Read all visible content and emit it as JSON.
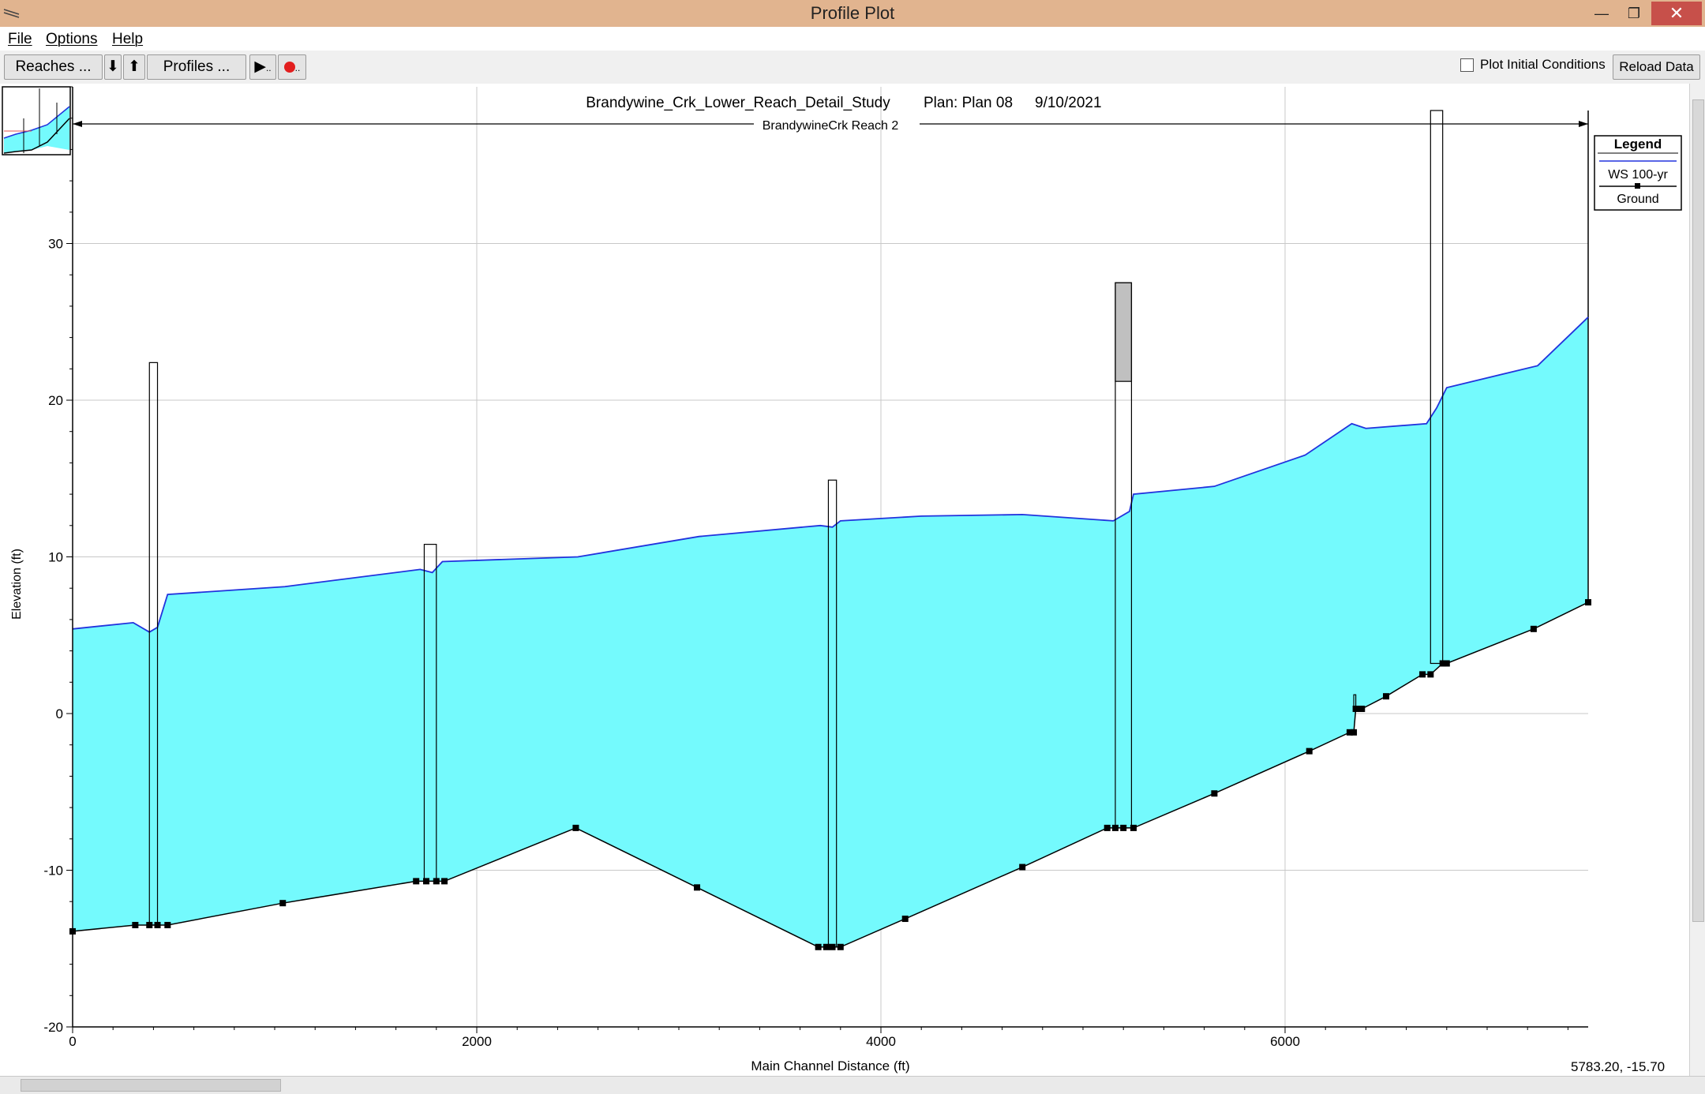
{
  "window": {
    "title": "Profile Plot",
    "minimize_glyph": "—",
    "restore_glyph": "❐",
    "close_glyph": "✕"
  },
  "menu": {
    "file": "File",
    "options": "Options",
    "help": "Help"
  },
  "toolbar": {
    "reaches_label": "Reaches ...",
    "down_arrow": "⬇",
    "up_arrow": "⬆",
    "profiles_label": "Profiles ...",
    "play_glyph": "▶",
    "play_suffix": "..",
    "record_suffix": "..",
    "plot_initial_label": "Plot Initial Conditions",
    "plot_initial_checked": false,
    "reload_label": "Reload Data"
  },
  "status": {
    "coordinate_readout": "5783.20, -15.70"
  },
  "colors": {
    "water": "#74fafd",
    "ws_line": "#2233dd",
    "ground": "#000000",
    "bridge_fill": "#c0c0c0"
  },
  "chart_data": {
    "type": "area",
    "title": "Brandywine_Crk_Lower_Reach_Detail_Study",
    "plan": "Plan: Plan 08",
    "date": "9/10/2021",
    "reach_label": "BrandywineCrk Reach 2",
    "xlabel": "Main Channel Distance (ft)",
    "ylabel": "Elevation (ft)",
    "xlim": [
      0,
      7500
    ],
    "ylim": [
      -20,
      40
    ],
    "xticks": [
      0,
      2000,
      4000,
      6000
    ],
    "yticks": [
      -20,
      -10,
      0,
      10,
      20,
      30
    ],
    "grid": true,
    "legend": {
      "title": "Legend",
      "entries": [
        "WS  100-yr",
        "Ground"
      ],
      "position": "top-right"
    },
    "series": [
      {
        "name": "WS  100-yr",
        "x": [
          0,
          300,
          380,
          420,
          470,
          1050,
          1720,
          1780,
          1830,
          2500,
          3100,
          3700,
          3760,
          3800,
          4200,
          4700,
          5150,
          5230,
          5250,
          5650,
          6100,
          6330,
          6400,
          6700,
          6750,
          6800,
          7250,
          7500
        ],
        "y": [
          5.4,
          5.8,
          5.2,
          5.5,
          7.6,
          8.1,
          9.2,
          9.0,
          9.7,
          10.0,
          11.3,
          12.0,
          11.9,
          12.3,
          12.6,
          12.7,
          12.3,
          12.9,
          14.0,
          14.5,
          16.5,
          18.5,
          18.2,
          18.5,
          19.5,
          20.8,
          22.2,
          25.3
        ]
      },
      {
        "name": "Ground",
        "x": [
          0,
          310,
          380,
          420,
          470,
          1040,
          1700,
          1750,
          1800,
          1840,
          2490,
          3090,
          3690,
          3730,
          3760,
          3800,
          4120,
          4700,
          5120,
          5160,
          5200,
          5250,
          5650,
          6120,
          6320,
          6340,
          6350,
          6380,
          6500,
          6680,
          6720,
          6780,
          6800,
          7230,
          7500
        ],
        "y": [
          -13.9,
          -13.5,
          -13.5,
          -13.5,
          -13.5,
          -12.1,
          -10.7,
          -10.7,
          -10.7,
          -10.7,
          -7.3,
          -11.1,
          -14.9,
          -14.9,
          -14.9,
          -14.9,
          -13.1,
          -9.8,
          -7.3,
          -7.3,
          -7.3,
          -7.3,
          -5.1,
          -2.4,
          -1.2,
          -1.2,
          0.3,
          0.3,
          1.1,
          2.5,
          2.5,
          3.2,
          3.2,
          5.4,
          7.1
        ]
      }
    ],
    "structures": [
      {
        "x1": 380,
        "x2": 420,
        "top": 22.4,
        "fill_from": null
      },
      {
        "x1": 1740,
        "x2": 1800,
        "top": 10.8,
        "fill_from": null
      },
      {
        "x1": 3740,
        "x2": 3780,
        "top": 14.9,
        "fill_from": null
      },
      {
        "x1": 5160,
        "x2": 5240,
        "top": 27.5,
        "fill_from": 21.2
      },
      {
        "x1": 6340,
        "x2": 6350,
        "top": 1.2,
        "fill_from": null
      },
      {
        "x1": 6720,
        "x2": 6780,
        "top": 40.8,
        "fill_from": null
      }
    ]
  }
}
